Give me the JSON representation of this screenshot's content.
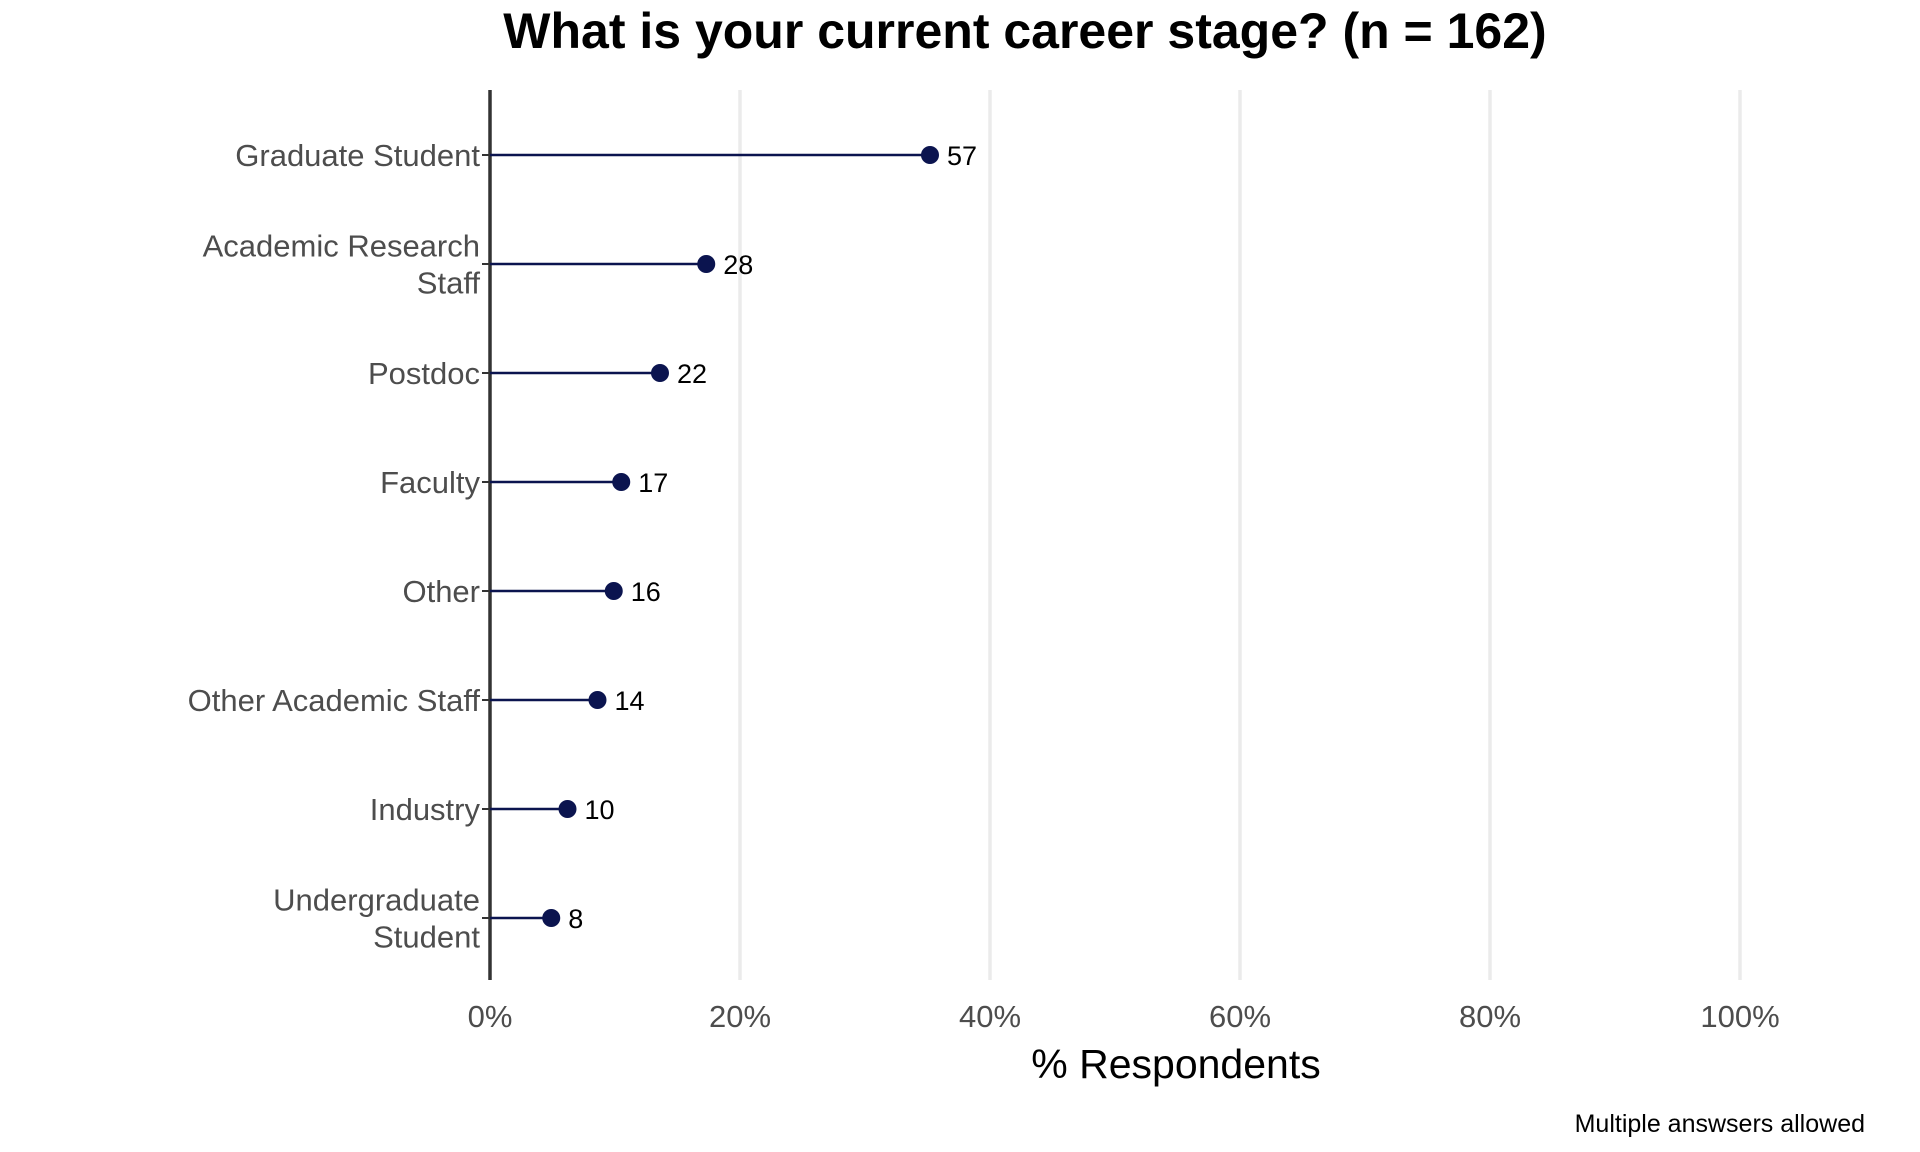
{
  "chart_data": {
    "type": "lollipop",
    "title": "What is your current career stage? (n = 162)",
    "xlabel": "% Respondents",
    "ylabel": "",
    "xlim": [
      0,
      100
    ],
    "xticks": [
      "0%",
      "20%",
      "40%",
      "60%",
      "80%",
      "100%"
    ],
    "xtick_values": [
      0,
      20,
      40,
      60,
      80,
      100
    ],
    "grid": "vertical major gridlines",
    "caption": "Multiple answsers allowed",
    "total_n": 162,
    "categories": [
      [
        "Graduate Student"
      ],
      [
        "Academic Research",
        "Staff"
      ],
      [
        "Postdoc"
      ],
      [
        "Faculty"
      ],
      [
        "Other"
      ],
      [
        "Other Academic Staff"
      ],
      [
        "Industry"
      ],
      [
        "Undergraduate",
        "Student"
      ]
    ],
    "counts": [
      57,
      28,
      22,
      17,
      16,
      14,
      10,
      8
    ],
    "percent": [
      35.2,
      17.3,
      13.6,
      10.5,
      9.9,
      8.6,
      6.2,
      4.9
    ],
    "colors": {
      "point": "#0b144f",
      "segment": "#0b144f",
      "axis": "#333333",
      "grid": "#ebebeb"
    }
  }
}
